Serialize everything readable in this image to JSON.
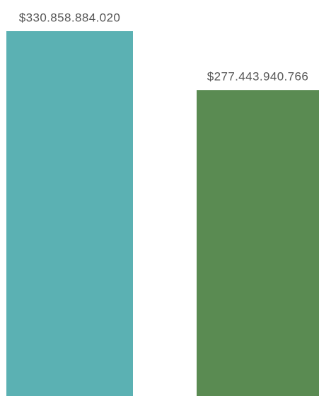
{
  "chart_data": {
    "type": "bar",
    "categories": [
      null,
      null
    ],
    "values": [
      330858884020,
      277443940766
    ],
    "value_labels": [
      "$330.858.884.020",
      "$277.443.940.766"
    ],
    "colors": [
      "#5bb1b3",
      "#5a8b52"
    ]
  }
}
